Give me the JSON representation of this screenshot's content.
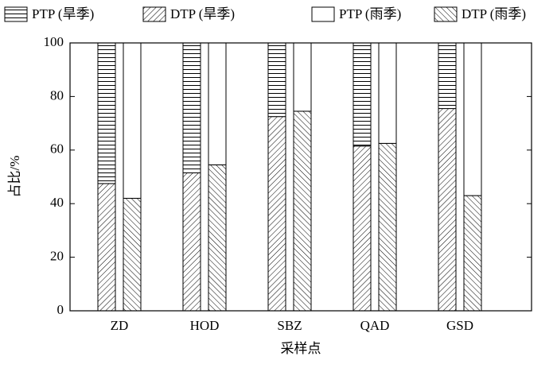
{
  "chart_data": {
    "type": "stacked_bar",
    "xlabel": "采样点",
    "ylabel": "占比/%",
    "categories": [
      "ZD",
      "HOD",
      "SBZ",
      "QAD",
      "GSD"
    ],
    "series": [
      {
        "name": "PTP (旱季)",
        "stack": "dry",
        "pattern": "horizontal",
        "values": [
          52.5,
          48.5,
          27.5,
          38.5,
          24.5
        ]
      },
      {
        "name": "DTP (旱季)",
        "stack": "dry",
        "pattern": "forward-diagonal",
        "values": [
          47.5,
          51.5,
          72.5,
          61.5,
          75.5
        ]
      },
      {
        "name": "PTP (雨季)",
        "stack": "wet",
        "pattern": "none",
        "values": [
          58,
          45.5,
          25.5,
          37.5,
          57
        ]
      },
      {
        "name": "DTP (雨季)",
        "stack": "wet",
        "pattern": "back-diagonal",
        "values": [
          42,
          54.5,
          74.5,
          62.5,
          43
        ]
      }
    ],
    "stack_order": [
      "DTP (旱季)",
      "PTP (旱季)",
      "DTP (雨季)",
      "PTP (雨季)"
    ],
    "ylim": [
      0,
      100
    ],
    "yticks": [
      0,
      20,
      40,
      60,
      80,
      100
    ],
    "legend": "top"
  }
}
